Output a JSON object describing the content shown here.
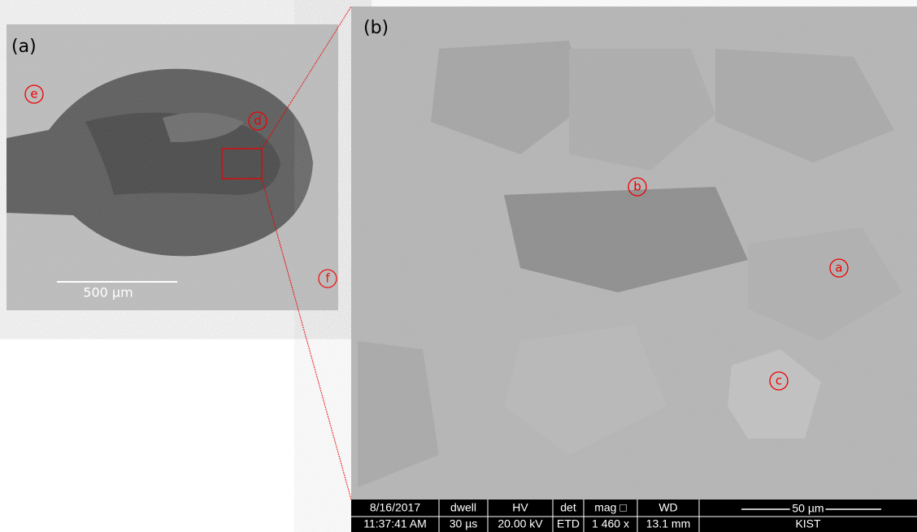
{
  "panel_a": {
    "label": "(a)",
    "markers": [
      "e",
      "d",
      "f"
    ],
    "scale_bar": "500 µm"
  },
  "panel_b": {
    "label": "(b)",
    "markers": [
      "b",
      "a",
      "c"
    ]
  },
  "info_bar": {
    "columns": [
      {
        "header": "8/16/2017",
        "value": "11:37:41 AM"
      },
      {
        "header": "dwell",
        "value": "30 µs"
      },
      {
        "header": "HV",
        "value": "20.00 kV"
      },
      {
        "header": "det",
        "value": "ETD"
      },
      {
        "header": "mag □",
        "value": "1 460 x"
      },
      {
        "header": "WD",
        "value": "13.1 mm"
      }
    ],
    "scale": "50 µm",
    "institute": "KIST"
  }
}
